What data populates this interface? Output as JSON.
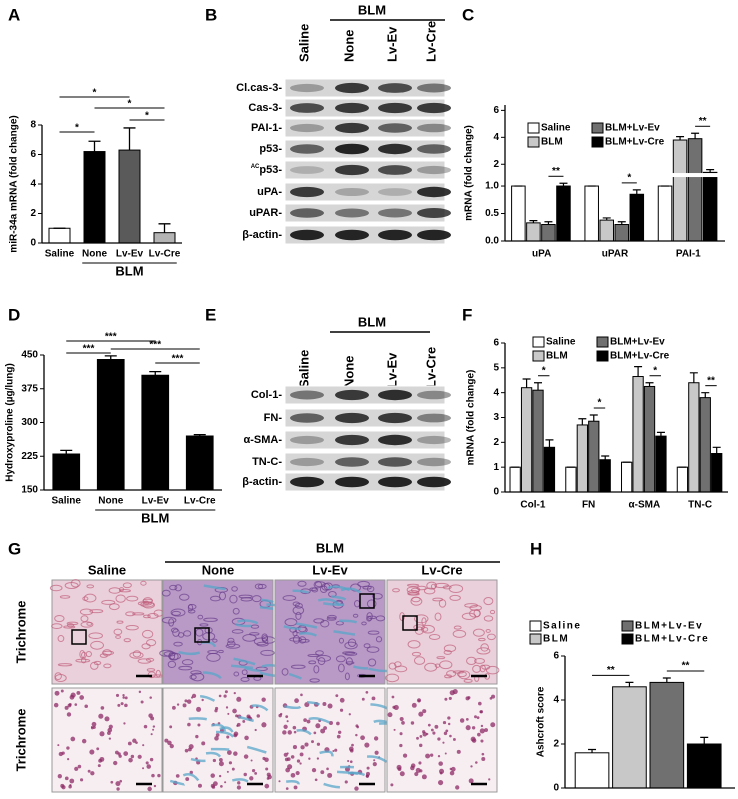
{
  "chart_data": [
    {
      "type": "bar",
      "label": "A",
      "ylabel": "miR-34a mRNA (fold change)",
      "categories": [
        "Saline",
        "None",
        "Lv-Ev",
        "Lv-Cre"
      ],
      "group_label": "BLM",
      "group_span": [
        1,
        3
      ],
      "values": [
        1.0,
        6.2,
        6.3,
        0.7
      ],
      "errors": [
        0,
        0.7,
        1.5,
        0.6
      ],
      "colors": [
        "#ffffff",
        "#000000",
        "#5a5a5a",
        "#b4b4b4"
      ],
      "ylim": [
        0,
        8
      ],
      "yticks": [
        0,
        2,
        4,
        6,
        8
      ],
      "significance": [
        {
          "from": 0,
          "to": 1,
          "label": "*"
        },
        {
          "from": 0,
          "to": 2,
          "label": "*"
        },
        {
          "from": 1,
          "to": 3,
          "label": "*"
        },
        {
          "from": 2,
          "to": 3,
          "label": "*"
        }
      ]
    },
    {
      "type": "grouped_bar",
      "label": "C",
      "ylabel": "mRNA (fold change)",
      "categories": [
        "uPA",
        "uPAR",
        "PAI-1"
      ],
      "series": [
        {
          "name": "Saline",
          "color": "#ffffff",
          "values": [
            1.0,
            1.0,
            1.0
          ],
          "errors": [
            0,
            0,
            0
          ]
        },
        {
          "name": "BLM",
          "color": "#c8c8c8",
          "values": [
            0.33,
            0.38,
            3.8
          ],
          "errors": [
            0.04,
            0.04,
            0.25
          ]
        },
        {
          "name": "BLM+Lv-Ev",
          "color": "#707070",
          "values": [
            0.3,
            0.3,
            3.9
          ],
          "errors": [
            0.05,
            0.05,
            0.4
          ]
        },
        {
          "name": "BLM+Lv-Cre",
          "color": "#000000",
          "values": [
            1.0,
            0.85,
            1.4
          ],
          "errors": [
            0.05,
            0.08,
            0.2
          ]
        }
      ],
      "ylim": [
        0,
        6.4
      ],
      "axis_break": 1.2,
      "yticks": [
        {
          "value": 0,
          "label": "0.0"
        },
        {
          "value": 0.5,
          "label": "0.5"
        },
        {
          "value": 1,
          "label": "1.0"
        },
        2,
        4,
        6
      ],
      "significance": [
        {
          "category": 0,
          "from": 2,
          "to": 3,
          "label": "**"
        },
        {
          "category": 1,
          "from": 2,
          "to": 3,
          "label": "*"
        },
        {
          "category": 2,
          "from": 2,
          "to": 3,
          "label": "**"
        }
      ]
    },
    {
      "type": "bar",
      "label": "D",
      "ylabel": "Hydroxyproline (µg/lung)",
      "categories": [
        "Saline",
        "None",
        "Lv-Ev",
        "Lv-Cre"
      ],
      "group_label": "BLM",
      "group_span": [
        1,
        3
      ],
      "values": [
        230,
        440,
        405,
        270
      ],
      "errors": [
        8,
        8,
        8,
        3
      ],
      "colors": [
        "#000000",
        "#000000",
        "#000000",
        "#000000"
      ],
      "ylim": [
        150,
        450
      ],
      "yticks": [
        150,
        225,
        300,
        375,
        450
      ],
      "significance": [
        {
          "from": 0,
          "to": 1,
          "label": "***"
        },
        {
          "from": 0,
          "to": 2,
          "label": "***"
        },
        {
          "from": 1,
          "to": 3,
          "label": "***"
        },
        {
          "from": 2,
          "to": 3,
          "label": "***"
        }
      ]
    },
    {
      "type": "grouped_bar",
      "label": "F",
      "ylabel": "mRNA (fold change)",
      "categories": [
        "Col-1",
        "FN",
        "α-SMA",
        "TN-C"
      ],
      "series": [
        {
          "name": "Saline",
          "color": "#ffffff",
          "values": [
            1.0,
            1.0,
            1.2,
            1.0
          ],
          "errors": [
            0,
            0,
            0,
            0
          ]
        },
        {
          "name": "BLM",
          "color": "#c8c8c8",
          "values": [
            4.2,
            2.7,
            4.65,
            4.4
          ],
          "errors": [
            0.35,
            0.25,
            0.4,
            0.4
          ]
        },
        {
          "name": "BLM+Lv-Ev",
          "color": "#707070",
          "values": [
            4.1,
            2.85,
            4.25,
            3.8
          ],
          "errors": [
            0.3,
            0.25,
            0.15,
            0.2
          ]
        },
        {
          "name": "BLM+Lv-Cre",
          "color": "#000000",
          "values": [
            1.8,
            1.3,
            2.25,
            1.55
          ],
          "errors": [
            0.3,
            0.15,
            0.15,
            0.25
          ]
        }
      ],
      "ylim": [
        0,
        6
      ],
      "yticks": [
        0,
        1,
        2,
        3,
        4,
        5,
        6
      ],
      "significance": [
        {
          "category": 0,
          "from": 2,
          "to": 3,
          "label": "*"
        },
        {
          "category": 1,
          "from": 2,
          "to": 3,
          "label": "*"
        },
        {
          "category": 2,
          "from": 2,
          "to": 3,
          "label": "*"
        },
        {
          "category": 3,
          "from": 2,
          "to": 3,
          "label": "**"
        }
      ]
    },
    {
      "type": "grouped_bar",
      "label": "H",
      "ylabel": "Ashcroft score",
      "series": [
        {
          "name": "Saline",
          "color": "#ffffff",
          "values": [
            1.6
          ],
          "errors": [
            0.15
          ]
        },
        {
          "name": "BLM",
          "color": "#c8c8c8",
          "values": [
            4.6
          ],
          "errors": [
            0.2
          ]
        },
        {
          "name": "BLM+Lv-Ev",
          "color": "#707070",
          "values": [
            4.8
          ],
          "errors": [
            0.2
          ]
        },
        {
          "name": "BLM+Lv-Cre",
          "color": "#000000",
          "values": [
            2.0
          ],
          "errors": [
            0.3
          ]
        }
      ],
      "ylim": [
        0,
        6
      ],
      "yticks": [
        0,
        2,
        4,
        6
      ],
      "significance": [
        {
          "from": 0,
          "to": 1,
          "label": "**"
        },
        {
          "from": 2,
          "to": 3,
          "label": "**"
        }
      ]
    }
  ],
  "blots": [
    {
      "label": "B",
      "group_label": "BLM",
      "lanes": [
        "Saline",
        "None",
        "Lv-Ev",
        "Lv-Cre"
      ],
      "rows": [
        "Cl.cas-3-",
        "Cas-3-",
        "PAI-1-",
        "p53-",
        {
          "sup": "AC",
          "text": "p53-"
        },
        "uPA-",
        "uPAR-",
        "β-actin-"
      ]
    },
    {
      "label": "E",
      "group_label": "BLM",
      "lanes": [
        "Saline",
        "None",
        "Lv-Ev",
        "Lv-Cre"
      ],
      "rows": [
        "Col-1-",
        "FN-",
        "α-SMA-",
        "TN-C-",
        "β-actin-"
      ]
    }
  ],
  "histology": {
    "label": "G",
    "group_label": "BLM",
    "columns": [
      "Saline",
      "None",
      "Lv-Ev",
      "Lv-Cre"
    ],
    "rows": [
      "Trichrome",
      "Trichrome"
    ]
  }
}
